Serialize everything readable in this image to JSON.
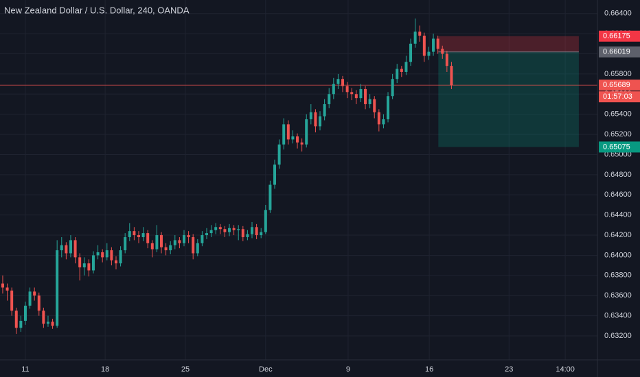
{
  "chart_data": {
    "type": "candlestick",
    "title": "New Zealand Dollar / U.S. Dollar, 240, OANDA",
    "up_color": "#26a69a",
    "down_color": "#ef5350",
    "open": [
      0.6372,
      0.6368,
      0.6365,
      0.6345,
      0.6328,
      0.6335,
      0.635,
      0.6364,
      0.636,
      0.6345,
      0.6332,
      0.6334,
      0.633,
      0.6405,
      0.641,
      0.6402,
      0.6415,
      0.6398,
      0.6388,
      0.6392,
      0.6385,
      0.64,
      0.6403,
      0.6398,
      0.6405,
      0.6395,
      0.6392,
      0.6405,
      0.6418,
      0.6424,
      0.642,
      0.6418,
      0.6422,
      0.6412,
      0.6406,
      0.642,
      0.6408,
      0.6405,
      0.641,
      0.6415,
      0.6412,
      0.642,
      0.6418,
      0.6402,
      0.6412,
      0.642,
      0.6422,
      0.6425,
      0.6428,
      0.6426,
      0.6423,
      0.6427,
      0.6425,
      0.6426,
      0.6418,
      0.6421,
      0.6428,
      0.642,
      0.6423,
      0.6445,
      0.647,
      0.649,
      0.651,
      0.653,
      0.6515,
      0.6518,
      0.6512,
      0.651,
      0.6535,
      0.6542,
      0.6528,
      0.6538,
      0.655,
      0.656,
      0.657,
      0.6575,
      0.6568,
      0.6562,
      0.656,
      0.6556,
      0.6565,
      0.655,
      0.6555,
      0.6542,
      0.653,
      0.6535,
      0.6558,
      0.6575,
      0.6585,
      0.6582,
      0.6592,
      0.661,
      0.6622,
      0.6618,
      0.6598,
      0.6602,
      0.6615,
      0.6605,
      0.66,
      0.6588
    ],
    "high": [
      0.638,
      0.6372,
      0.6368,
      0.6348,
      0.634,
      0.6354,
      0.6368,
      0.6368,
      0.6363,
      0.6348,
      0.634,
      0.6337,
      0.6415,
      0.6418,
      0.6413,
      0.642,
      0.6418,
      0.6402,
      0.6398,
      0.6396,
      0.6404,
      0.641,
      0.6406,
      0.6412,
      0.6408,
      0.6399,
      0.6409,
      0.6422,
      0.6432,
      0.6428,
      0.6424,
      0.6428,
      0.6425,
      0.6415,
      0.643,
      0.6423,
      0.6412,
      0.6414,
      0.642,
      0.6418,
      0.6425,
      0.6424,
      0.6421,
      0.6416,
      0.6424,
      0.6427,
      0.643,
      0.6432,
      0.6431,
      0.6429,
      0.6431,
      0.643,
      0.643,
      0.6429,
      0.6425,
      0.6433,
      0.6431,
      0.6427,
      0.645,
      0.6474,
      0.6495,
      0.6515,
      0.6536,
      0.6534,
      0.6524,
      0.6521,
      0.6516,
      0.654,
      0.655,
      0.6545,
      0.6543,
      0.6555,
      0.6566,
      0.6576,
      0.658,
      0.6578,
      0.6572,
      0.6566,
      0.6564,
      0.657,
      0.6568,
      0.656,
      0.6558,
      0.6545,
      0.654,
      0.6562,
      0.658,
      0.659,
      0.6588,
      0.6598,
      0.6615,
      0.6635,
      0.6628,
      0.6621,
      0.6607,
      0.662,
      0.6618,
      0.6608,
      0.6603,
      0.6592
    ],
    "low": [
      0.6362,
      0.6355,
      0.634,
      0.6322,
      0.6324,
      0.6331,
      0.6347,
      0.6355,
      0.634,
      0.6328,
      0.6329,
      0.6327,
      0.6328,
      0.6398,
      0.6396,
      0.6398,
      0.6392,
      0.6375,
      0.638,
      0.6379,
      0.6382,
      0.6396,
      0.6393,
      0.6395,
      0.639,
      0.6386,
      0.6389,
      0.6402,
      0.6414,
      0.6415,
      0.6412,
      0.6414,
      0.6407,
      0.6398,
      0.6403,
      0.6402,
      0.64,
      0.6401,
      0.6406,
      0.6407,
      0.6409,
      0.6412,
      0.6396,
      0.6399,
      0.6409,
      0.6416,
      0.6418,
      0.6421,
      0.6421,
      0.6418,
      0.6419,
      0.642,
      0.6415,
      0.6414,
      0.6415,
      0.6417,
      0.6416,
      0.6417,
      0.6421,
      0.6442,
      0.6466,
      0.6486,
      0.6505,
      0.651,
      0.6511,
      0.6506,
      0.6503,
      0.6507,
      0.653,
      0.6522,
      0.6524,
      0.6534,
      0.6546,
      0.6555,
      0.6565,
      0.6562,
      0.6556,
      0.6554,
      0.655,
      0.6552,
      0.6545,
      0.6546,
      0.6536,
      0.6523,
      0.6526,
      0.6532,
      0.6555,
      0.6571,
      0.6577,
      0.6579,
      0.6588,
      0.6606,
      0.6612,
      0.6592,
      0.6594,
      0.6598,
      0.66,
      0.6595,
      0.6582,
      0.6565
    ],
    "close": [
      0.6368,
      0.6365,
      0.6345,
      0.6328,
      0.6335,
      0.635,
      0.6364,
      0.636,
      0.6345,
      0.6332,
      0.6334,
      0.633,
      0.6405,
      0.641,
      0.6402,
      0.6415,
      0.6398,
      0.6388,
      0.6392,
      0.6385,
      0.64,
      0.6403,
      0.6398,
      0.6405,
      0.6395,
      0.6392,
      0.6405,
      0.6418,
      0.6424,
      0.642,
      0.6418,
      0.6422,
      0.6412,
      0.6406,
      0.642,
      0.6408,
      0.6405,
      0.641,
      0.6415,
      0.6412,
      0.642,
      0.6418,
      0.6402,
      0.6412,
      0.642,
      0.6422,
      0.6425,
      0.6428,
      0.6426,
      0.6423,
      0.6427,
      0.6425,
      0.6426,
      0.6418,
      0.6421,
      0.6428,
      0.642,
      0.6423,
      0.6445,
      0.647,
      0.649,
      0.651,
      0.653,
      0.6515,
      0.6518,
      0.6512,
      0.651,
      0.6535,
      0.6542,
      0.6528,
      0.6538,
      0.655,
      0.656,
      0.657,
      0.6575,
      0.6568,
      0.6562,
      0.656,
      0.6556,
      0.6565,
      0.655,
      0.6555,
      0.6542,
      0.653,
      0.6535,
      0.6558,
      0.6575,
      0.6585,
      0.6582,
      0.6592,
      0.661,
      0.6622,
      0.6618,
      0.6598,
      0.6602,
      0.6615,
      0.6605,
      0.66,
      0.6588,
      0.65689
    ],
    "xlim": [
      -0.6,
      131.2
    ],
    "xticks": [
      {
        "value": 5,
        "label": "11"
      },
      {
        "value": 22.6,
        "label": "18"
      },
      {
        "value": 40.3,
        "label": "25"
      },
      {
        "value": 58,
        "label": "Dec"
      },
      {
        "value": 76.2,
        "label": "9"
      },
      {
        "value": 94.1,
        "label": "16"
      },
      {
        "value": 111.7,
        "label": "23"
      },
      {
        "value": 124.1,
        "label": "14:00"
      }
    ],
    "ylim": [
      0.62962,
      0.66534
    ],
    "yticks": [
      {
        "value": 0.632,
        "label": "0.63200"
      },
      {
        "value": 0.634,
        "label": "0.63400"
      },
      {
        "value": 0.636,
        "label": "0.63600"
      },
      {
        "value": 0.638,
        "label": "0.63800"
      },
      {
        "value": 0.64,
        "label": "0.64000"
      },
      {
        "value": 0.642,
        "label": "0.64200"
      },
      {
        "value": 0.644,
        "label": "0.64400"
      },
      {
        "value": 0.646,
        "label": "0.64600"
      },
      {
        "value": 0.648,
        "label": "0.64800"
      },
      {
        "value": 0.65,
        "label": "0.65000"
      },
      {
        "value": 0.652,
        "label": "0.65200"
      },
      {
        "value": 0.654,
        "label": "0.65400"
      },
      {
        "value": 0.656,
        "label": "0.65600"
      },
      {
        "value": 0.658,
        "label": "0.65800"
      },
      {
        "value": 0.66,
        "label": "0.66000"
      },
      {
        "value": 0.662,
        "label": "0.66200"
      },
      {
        "value": 0.664,
        "label": "0.66400"
      }
    ],
    "grid": true,
    "last_price": 0.65689,
    "countdown": "01:57:03",
    "position": {
      "start": 96.1,
      "end": 127.1,
      "entry": 0.66019,
      "stop": 0.66175,
      "target": 0.65075,
      "entry_color": "#5d606b",
      "stop_color": "#f23645",
      "target_color": "#089981"
    }
  }
}
